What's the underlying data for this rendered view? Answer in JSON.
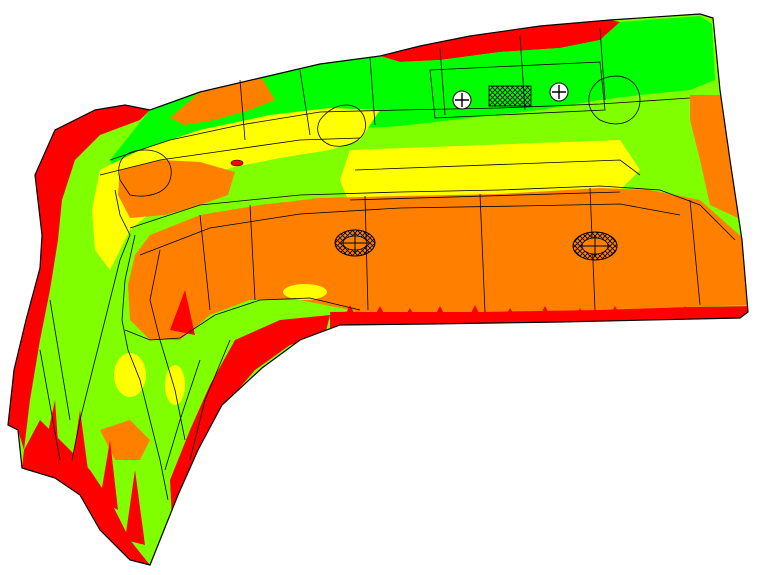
{
  "viewport": {
    "background": "#ffffff"
  },
  "contour_colors": {
    "red": "#ff0000",
    "orange": "#ff8000",
    "yellow": "#ffff00",
    "light_green": "#80ff00",
    "green": "#00ff00",
    "mesh_line": "#000000"
  },
  "features": {
    "hole_markers": [
      "plus-hole-icon",
      "plus-hole-icon"
    ],
    "crosshatch_pad": "crosshatch-pad-icon",
    "mounting_bosses": [
      "oval-boss-icon",
      "oval-boss-icon"
    ]
  }
}
